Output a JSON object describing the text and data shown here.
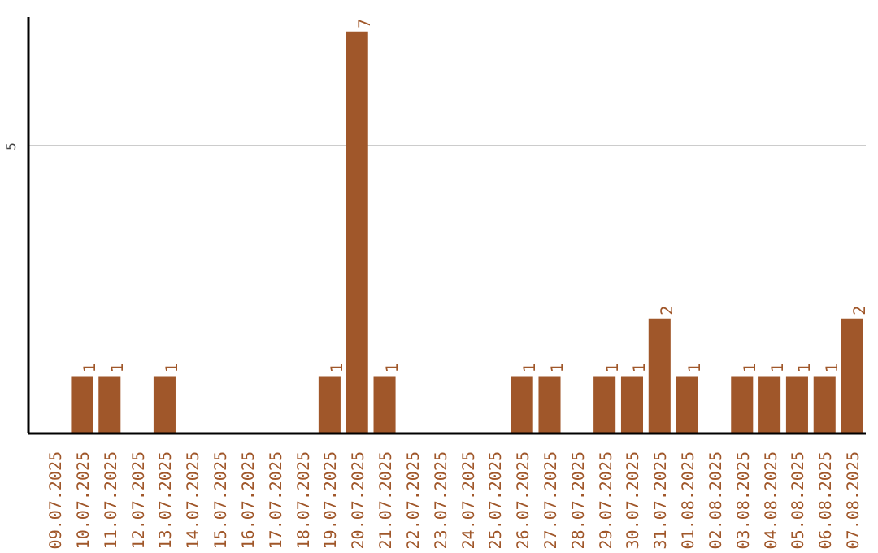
{
  "chart_data": {
    "type": "bar",
    "categories": [
      "09.07.2025",
      "10.07.2025",
      "11.07.2025",
      "12.07.2025",
      "13.07.2025",
      "14.07.2025",
      "15.07.2025",
      "16.07.2025",
      "17.07.2025",
      "18.07.2025",
      "19.07.2025",
      "20.07.2025",
      "21.07.2025",
      "22.07.2025",
      "23.07.2025",
      "24.07.2025",
      "25.07.2025",
      "26.07.2025",
      "27.07.2025",
      "28.07.2025",
      "29.07.2025",
      "30.07.2025",
      "31.07.2025",
      "01.08.2025",
      "02.08.2025",
      "03.08.2025",
      "04.08.2025",
      "05.08.2025",
      "06.08.2025",
      "07.08.2025"
    ],
    "values": [
      0,
      1,
      1,
      0,
      1,
      0,
      0,
      0,
      0,
      0,
      1,
      7,
      1,
      0,
      0,
      0,
      0,
      1,
      1,
      0,
      1,
      1,
      2,
      1,
      0,
      1,
      1,
      1,
      1,
      2
    ],
    "value_labels": [
      null,
      "1",
      "1",
      null,
      "1",
      null,
      null,
      null,
      null,
      null,
      "1",
      "7",
      "1",
      null,
      null,
      null,
      null,
      "1",
      "1",
      null,
      "1",
      "1",
      "2",
      "1",
      null,
      "1",
      "1",
      "1",
      "1",
      "2"
    ],
    "color": "#a0572a",
    "ylim": [
      0,
      7.25
    ],
    "yticks": [
      5
    ],
    "grid": "y"
  }
}
